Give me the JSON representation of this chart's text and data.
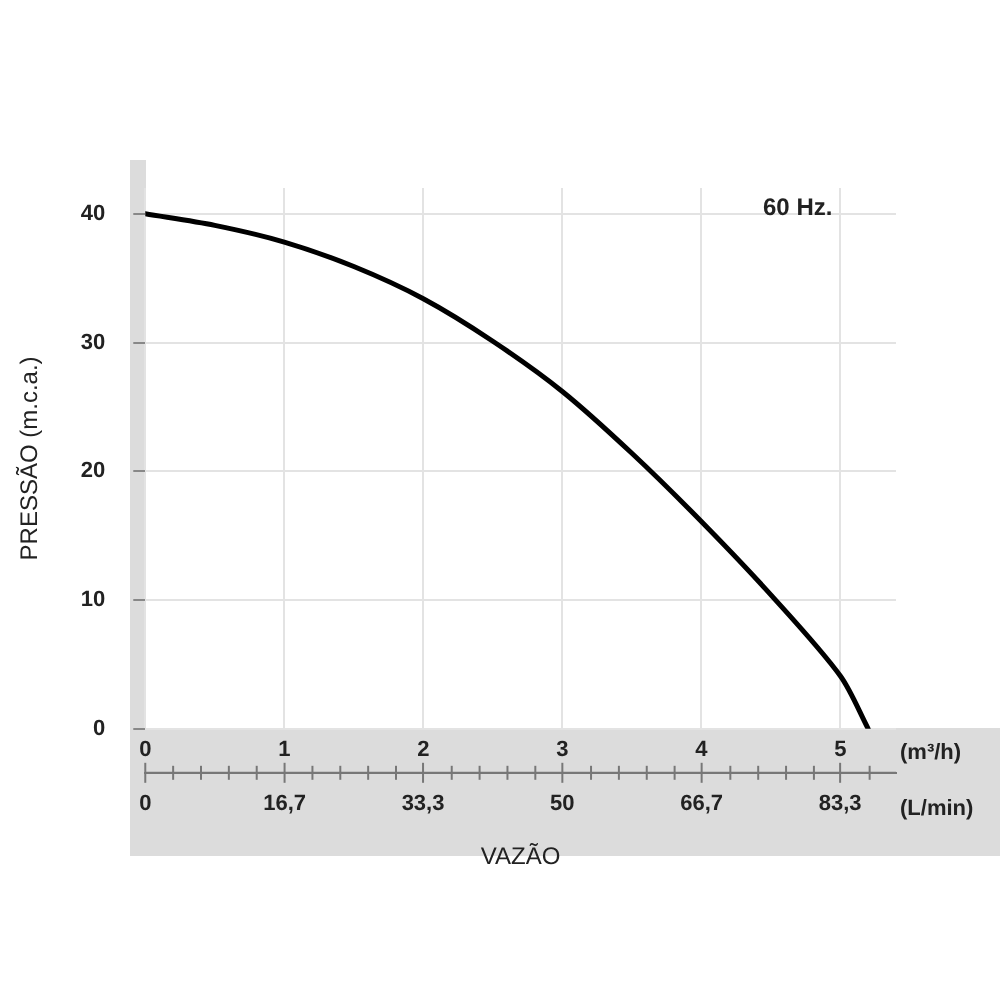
{
  "chart_data": {
    "type": "line",
    "xlabel": "VAZÃO",
    "ylabel": "PRESSÃO (m.c.a.)",
    "annotations": [
      "60 Hz.",
      "(m³/h)",
      "(L/min)"
    ],
    "series": [
      {
        "color": "#000000",
        "x": [
          0,
          0.5,
          1,
          1.5,
          2,
          2.5,
          3,
          3.5,
          4,
          4.5,
          5,
          5.2
        ],
        "values": [
          40,
          39.1,
          37.8,
          35.9,
          33.4,
          30.1,
          26.2,
          21.4,
          16.1,
          10.4,
          4.1,
          0
        ]
      }
    ],
    "xlim": [
      0,
      5.4
    ],
    "xticks": [
      0,
      1,
      2,
      3,
      4,
      5
    ],
    "ylim": [
      0,
      42
    ],
    "yticks": [
      0,
      10,
      20,
      30,
      40
    ],
    "x2lim": [
      0,
      90
    ],
    "x2ticks": [
      0,
      {
        "value": 16.7,
        "label": "16,7"
      },
      {
        "value": 33.3,
        "label": "33,3"
      },
      50,
      {
        "value": 66.7,
        "label": "66,7"
      },
      {
        "value": 83.3,
        "label": "83,3"
      }
    ],
    "grid": true,
    "legend": false,
    "marker": "none",
    "line_style": "solid"
  }
}
